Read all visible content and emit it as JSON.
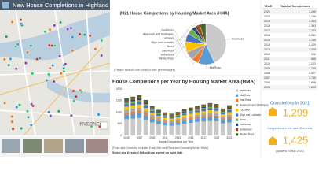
{
  "header": {
    "title": "New House Completions in Highland"
  },
  "map": {
    "labels": [
      "INVERNESS"
    ]
  },
  "chart_data": [
    {
      "type": "pie",
      "title": "2021 House Completions by Housing Market Area (HMA)",
      "note": "(Please search over chart to see percentages)",
      "categories": [
        "Inverness",
        "Mid Ross",
        "East Ross",
        "Badenoch and Strathspey",
        "Lochaber",
        "Skye and Lochalsh",
        "Nairn",
        "Caithness",
        "Sutherland",
        "Wester Ross"
      ],
      "values": [
        560,
        170,
        70,
        90,
        110,
        85,
        60,
        40,
        50,
        64
      ],
      "colors": [
        "#c9c9c9",
        "#5b9bd5",
        "#ed7d31",
        "#a5a5a5",
        "#ffc000",
        "#4472c4",
        "#70ad47",
        "#264478",
        "#9e480e",
        "#43682b"
      ]
    },
    {
      "type": "bar",
      "title": "House Completions per Year by Housing Market Area (HMA)",
      "x_label": "House Completions per Year",
      "stacked": true,
      "note": "(Ross and Cromarty includes East, Mid and Ross and Cromarty West HMAs)",
      "note2": "Select and Deselect HMAs from legend on right side.",
      "categories": [
        "2005",
        null,
        "2007",
        null,
        "2009",
        null,
        "2011",
        null,
        "2013",
        null,
        "2015",
        null,
        "2017",
        null,
        "2019",
        null,
        "2021"
      ],
      "ylim": [
        0,
        2000
      ],
      "yticks": [
        0,
        500,
        1000,
        1500,
        2000
      ],
      "grid": true,
      "series": [
        {
          "name": "Inverness",
          "color": "#c9c9c9",
          "values": [
            700,
            720,
            750,
            680,
            560,
            480,
            430,
            420,
            450,
            500,
            540,
            580,
            600,
            620,
            610,
            520,
            560
          ]
        },
        {
          "name": "Mid Ross",
          "color": "#5b9bd5",
          "values": [
            200,
            210,
            220,
            190,
            160,
            140,
            120,
            110,
            120,
            140,
            150,
            160,
            170,
            180,
            175,
            150,
            170
          ]
        },
        {
          "name": "East Ross",
          "color": "#ed7d31",
          "values": [
            90,
            95,
            100,
            85,
            70,
            60,
            55,
            50,
            55,
            60,
            65,
            70,
            72,
            75,
            70,
            60,
            70
          ]
        },
        {
          "name": "Badenoch and Strathspey",
          "color": "#a5a5a5",
          "values": [
            120,
            130,
            125,
            110,
            90,
            80,
            70,
            65,
            70,
            75,
            80,
            85,
            90,
            95,
            92,
            80,
            90
          ]
        },
        {
          "name": "Lochaber",
          "color": "#ffc000",
          "values": [
            130,
            135,
            140,
            120,
            100,
            90,
            85,
            80,
            85,
            95,
            100,
            105,
            110,
            115,
            112,
            95,
            110
          ]
        },
        {
          "name": "Skye and Lochalsh",
          "color": "#4472c4",
          "values": [
            100,
            105,
            110,
            95,
            80,
            70,
            65,
            60,
            65,
            70,
            75,
            80,
            82,
            88,
            85,
            72,
            85
          ]
        },
        {
          "name": "Nairn",
          "color": "#70ad47",
          "values": [
            70,
            75,
            80,
            70,
            55,
            50,
            45,
            40,
            45,
            50,
            52,
            55,
            58,
            60,
            58,
            50,
            60
          ]
        },
        {
          "name": "Caithness",
          "color": "#264478",
          "values": [
            60,
            62,
            65,
            55,
            45,
            40,
            35,
            32,
            35,
            38,
            40,
            42,
            44,
            45,
            42,
            36,
            40
          ]
        },
        {
          "name": "Sutherland",
          "color": "#9e480e",
          "values": [
            55,
            58,
            60,
            52,
            45,
            40,
            36,
            34,
            36,
            40,
            42,
            45,
            47,
            50,
            48,
            42,
            50
          ]
        },
        {
          "name": "Wester Ross",
          "color": "#43682b",
          "values": [
            75,
            78,
            80,
            70,
            60,
            52,
            48,
            45,
            48,
            52,
            55,
            58,
            60,
            65,
            62,
            54,
            64
          ]
        }
      ]
    }
  ],
  "table": {
    "columns": [
      "YEAR",
      "Total of Completions"
    ],
    "rows": [
      [
        "2021",
        "1,299"
      ],
      [
        "2020",
        "1,159"
      ],
      [
        "2019",
        "1,354"
      ],
      [
        "2018",
        "1,393"
      ],
      [
        "2017",
        "1,333"
      ],
      [
        "2016",
        "1,280"
      ],
      [
        "2015",
        "1,199"
      ],
      [
        "2014",
        "1,120"
      ],
      [
        "2013",
        "1,009"
      ],
      [
        "2012",
        "936"
      ],
      [
        "2011",
        "989"
      ],
      [
        "2010",
        "1,102"
      ],
      [
        "2009",
        "1,265"
      ],
      [
        "2008",
        "1,527"
      ],
      [
        "2007",
        "1,730"
      ],
      [
        "2006",
        "1,668"
      ],
      [
        "2005",
        "1,600"
      ]
    ]
  },
  "kpis": [
    {
      "label": "Completions in 2021",
      "value": "1,299"
    },
    {
      "label": "Completions in the last 12 months",
      "value": "1,425",
      "note": "(updated 24 Nov 2021)"
    }
  ]
}
